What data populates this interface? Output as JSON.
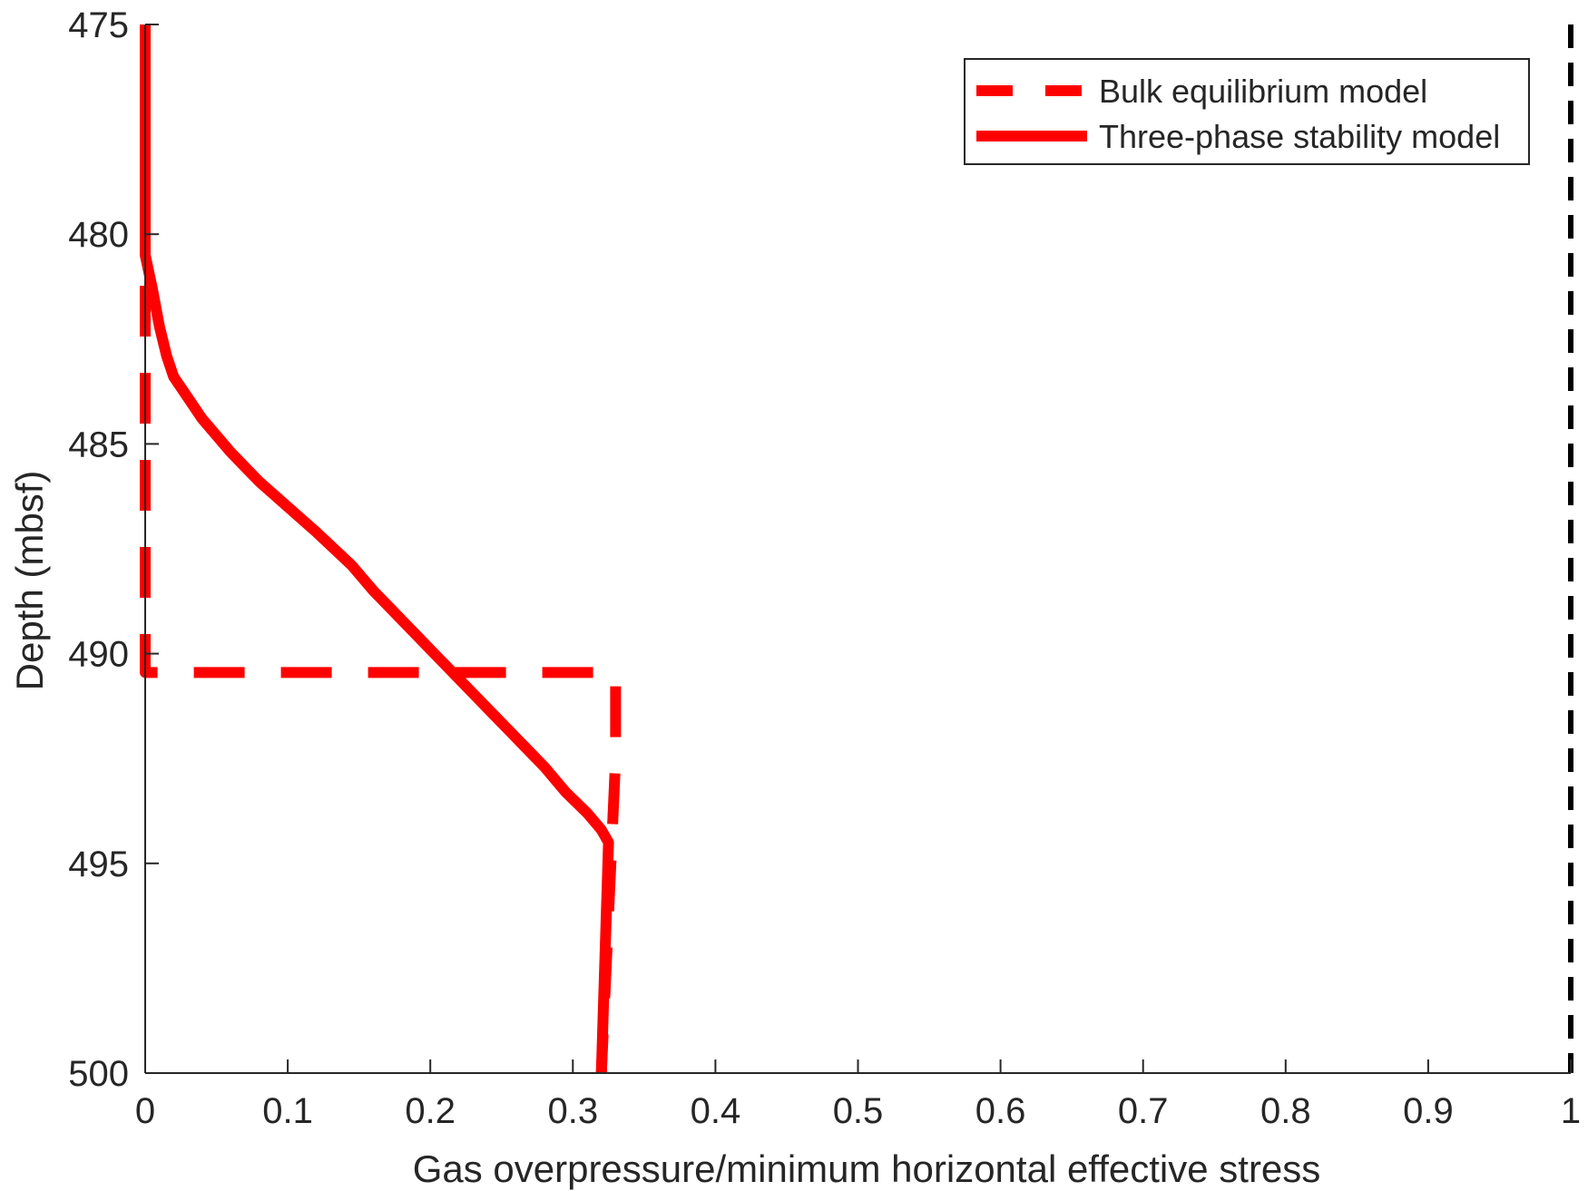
{
  "chart_data": {
    "type": "line",
    "title": "",
    "xlabel": "Gas overpressure/minimum horizontal effective stress",
    "ylabel": "Depth (mbsf)",
    "xlim": [
      0,
      1
    ],
    "ylim": [
      475,
      500
    ],
    "y_reversed": true,
    "xticks": [
      0,
      0.1,
      0.2,
      0.3,
      0.4,
      0.5,
      0.6,
      0.7,
      0.8,
      0.9,
      1
    ],
    "xtick_labels": [
      "0",
      "0.1",
      "0.2",
      "0.3",
      "0.4",
      "0.5",
      "0.6",
      "0.7",
      "0.8",
      "0.9",
      "1"
    ],
    "yticks": [
      475,
      480,
      485,
      490,
      495,
      500
    ],
    "ytick_labels": [
      "475",
      "480",
      "485",
      "490",
      "495",
      "500"
    ],
    "grid": false,
    "legend_position": "top-right",
    "series": [
      {
        "name": "Bulk equilibrium model",
        "style": "dashed",
        "color": "#ff0000",
        "x": [
          0,
          0,
          0.33,
          0.33,
          0.32
        ],
        "y": [
          475,
          490.45,
          490.45,
          492.5,
          500
        ]
      },
      {
        "name": "Three-phase stability model",
        "style": "solid",
        "color": "#ff0000",
        "x": [
          0,
          0,
          0.005,
          0.01,
          0.015,
          0.02,
          0.03,
          0.04,
          0.06,
          0.08,
          0.1,
          0.12,
          0.145,
          0.16,
          0.18,
          0.2,
          0.22,
          0.24,
          0.26,
          0.28,
          0.295,
          0.31,
          0.32,
          0.325,
          0.32
        ],
        "y": [
          475,
          480.5,
          481.3,
          482.2,
          482.9,
          483.4,
          483.9,
          484.4,
          485.2,
          485.9,
          486.5,
          487.1,
          487.9,
          488.5,
          489.2,
          489.9,
          490.6,
          491.3,
          492,
          492.7,
          493.3,
          493.8,
          494.2,
          494.5,
          500
        ]
      },
      {
        "name": "",
        "style": "dotted",
        "color": "#000000",
        "x": [
          1,
          1
        ],
        "y": [
          475,
          500
        ]
      }
    ]
  }
}
